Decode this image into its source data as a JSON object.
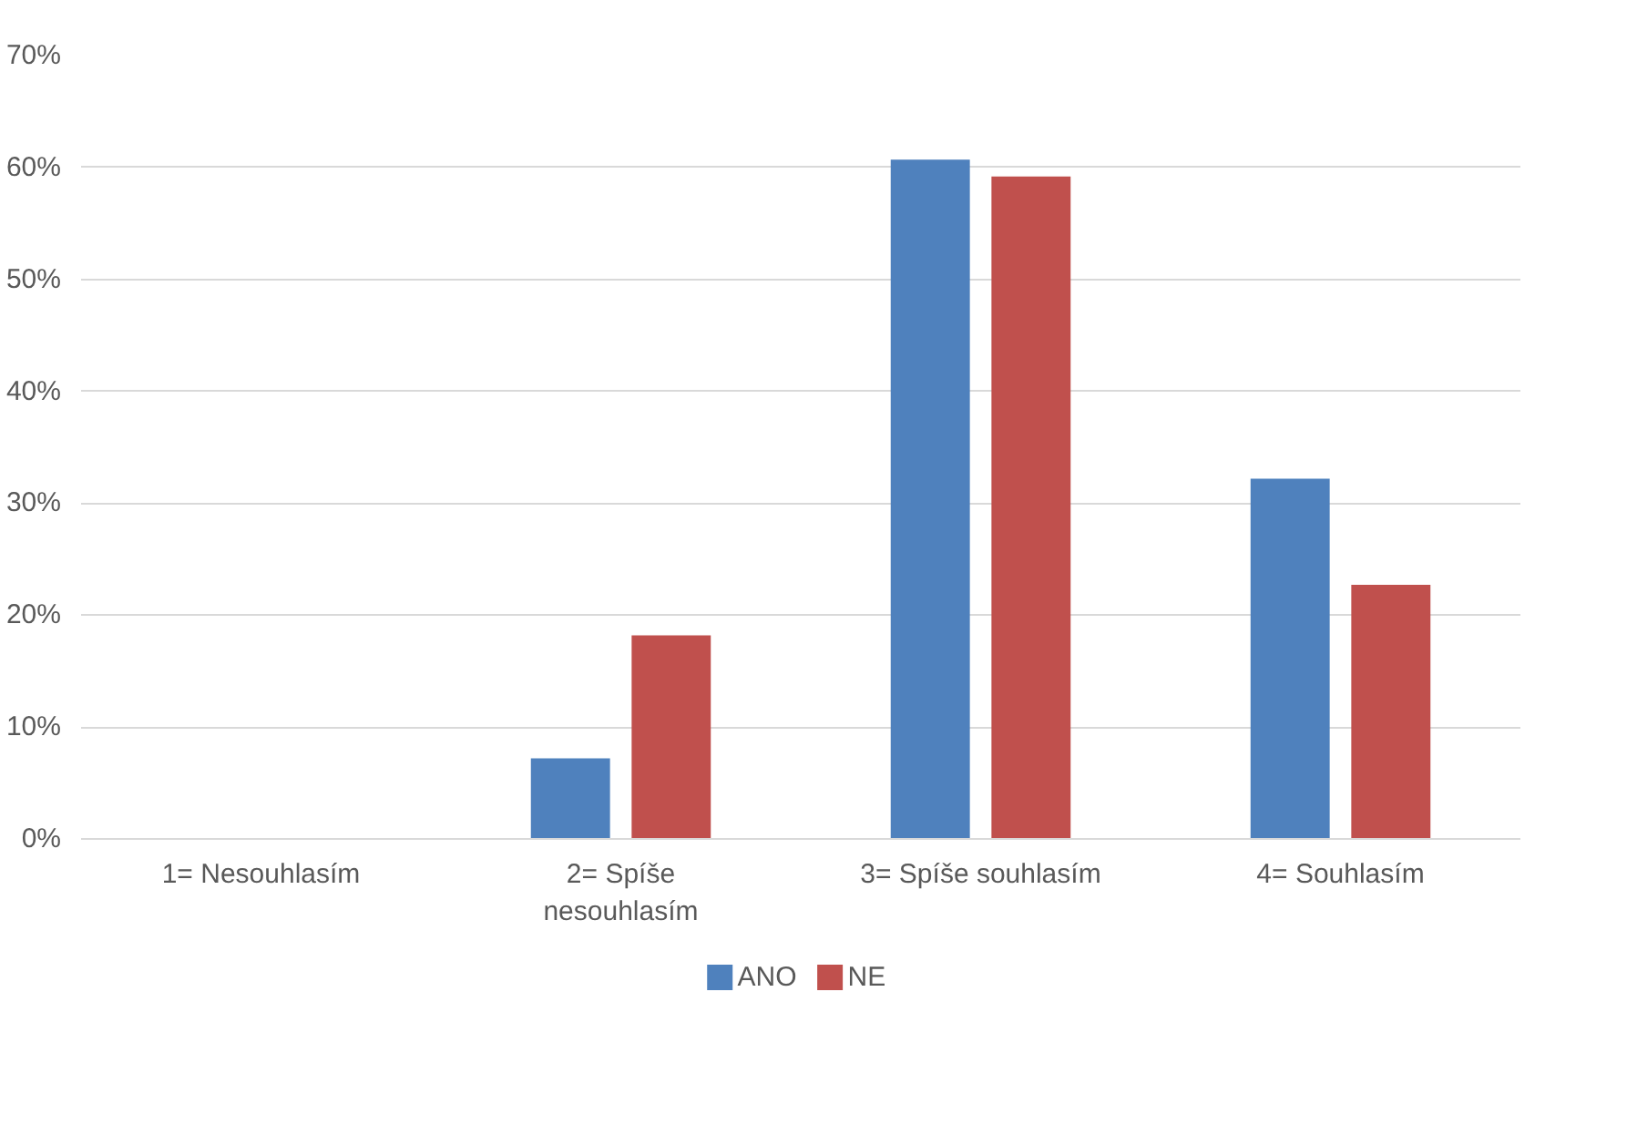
{
  "chart_data": {
    "type": "bar",
    "categories": [
      "1= Nesouhlasím",
      "2= Spíše nesouhlasím",
      "3= Spíše souhlasím",
      "4= Souhlasím"
    ],
    "series": [
      {
        "name": "ANO",
        "color": "#4f81bd",
        "values": [
          0,
          7.2,
          60.7,
          32.2
        ]
      },
      {
        "name": "NE",
        "color": "#c0504d",
        "values": [
          0,
          18.2,
          59.2,
          22.7
        ]
      }
    ],
    "ylim": [
      0,
      70
    ],
    "yticks": [
      {
        "value": 0,
        "label": "0%"
      },
      {
        "value": 10,
        "label": "10%"
      },
      {
        "value": 20,
        "label": "20%"
      },
      {
        "value": 30,
        "label": "30%"
      },
      {
        "value": 40,
        "label": "40%"
      },
      {
        "value": 50,
        "label": "50%"
      },
      {
        "value": 60,
        "label": "60%"
      },
      {
        "value": 70,
        "label": "70%"
      }
    ],
    "grid": "y",
    "legend": "bottom"
  }
}
